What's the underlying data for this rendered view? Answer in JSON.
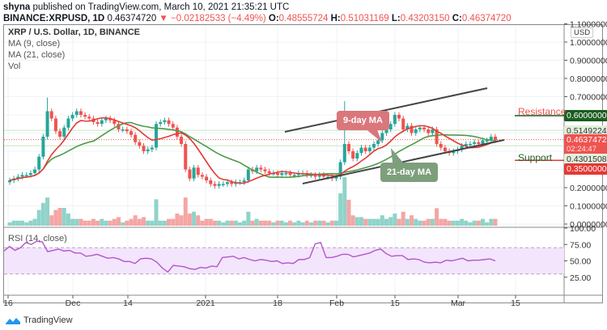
{
  "header": {
    "publisher": "shyna",
    "published_text": "published on TradingView.com, March 10, 2021 21:35:21 UTC",
    "symbol": "BINANCE:XRPUSD, 1D",
    "last": "0.46374720",
    "change_arrow": "▼",
    "change": "−0.02182533 (−4.49%)",
    "o_label": "O:",
    "o": "0.48555724",
    "h_label": "H:",
    "h": "0.51031169",
    "l_label": "L:",
    "l": "0.43203150",
    "c_label": "C:",
    "c": "0.46374720"
  },
  "legend": {
    "title": "XRP / U.S. Dollar, 1D, BINANCE",
    "ma9": "MA (9, close)",
    "ma21": "MA (21, close)",
    "vol": "Vol"
  },
  "price_axis": {
    "currency": "USD",
    "ticks": [
      "1.10000000",
      "1.00000000",
      "0.90000000",
      "0.80000000",
      "0.70000000",
      "0.60000000",
      "0.20000000",
      "0.10000000",
      "0.00000000"
    ],
    "tags": {
      "resistance": "0.60000000",
      "ma21_value": "0.51492241",
      "last_price": "0.46374720",
      "countdown": "02:24:47",
      "ma9_value": "0.43015080",
      "support": "0.35000000"
    }
  },
  "annotations": {
    "resistance": "Resistance",
    "support": "Support",
    "ma9_note": "9-day MA",
    "ma21_note": "21-day MA"
  },
  "rsi": {
    "label": "RSI (14, close)",
    "ticks": [
      "100.00",
      "75.00",
      "50.00",
      "25.00"
    ]
  },
  "x_axis": [
    "16",
    "Dec",
    "14",
    "2021",
    "18",
    "Feb",
    "15",
    "Mar",
    "15"
  ],
  "brand": "TradingView",
  "colors": {
    "up": "#26a69a",
    "down": "#ef5350",
    "ma9": "#e53935",
    "ma21": "#4c9a4a",
    "rsi": "#b455cf",
    "resistance_tag": "#1b5e20",
    "support_tag": "#e53935"
  },
  "chart_data": {
    "type": "candlestick",
    "title": "XRP / U.S. Dollar, 1D, BINANCE",
    "xlabel": "",
    "ylabel": "USD",
    "ylim": [
      0,
      1.1
    ],
    "x_tick_labels": [
      "16",
      "Dec",
      "14",
      "2021",
      "18",
      "Feb",
      "15",
      "Mar",
      "15"
    ],
    "closes": [
      0.24,
      0.25,
      0.26,
      0.27,
      0.27,
      0.28,
      0.3,
      0.37,
      0.48,
      0.62,
      0.58,
      0.51,
      0.48,
      0.53,
      0.58,
      0.6,
      0.62,
      0.6,
      0.59,
      0.58,
      0.56,
      0.55,
      0.57,
      0.58,
      0.57,
      0.55,
      0.52,
      0.52,
      0.51,
      0.49,
      0.45,
      0.43,
      0.4,
      0.41,
      0.42,
      0.55,
      0.56,
      0.57,
      0.55,
      0.53,
      0.48,
      0.44,
      0.3,
      0.25,
      0.31,
      0.27,
      0.26,
      0.24,
      0.22,
      0.21,
      0.22,
      0.22,
      0.23,
      0.22,
      0.23,
      0.23,
      0.24,
      0.3,
      0.29,
      0.31,
      0.3,
      0.29,
      0.28,
      0.28,
      0.27,
      0.28,
      0.28,
      0.27,
      0.27,
      0.28,
      0.28,
      0.27,
      0.27,
      0.26,
      0.27,
      0.26,
      0.26,
      0.25,
      0.26,
      0.34,
      0.44,
      0.4,
      0.36,
      0.39,
      0.42,
      0.4,
      0.42,
      0.44,
      0.46,
      0.5,
      0.52,
      0.55,
      0.6,
      0.58,
      0.52,
      0.54,
      0.5,
      0.52,
      0.53,
      0.52,
      0.5,
      0.52,
      0.44,
      0.42,
      0.4,
      0.39,
      0.4,
      0.41,
      0.43,
      0.44,
      0.44,
      0.45,
      0.44,
      0.46,
      0.46,
      0.48,
      0.46
    ],
    "series": [
      {
        "name": "MA (9, close)",
        "value_at_last": 0.4301508
      },
      {
        "name": "MA (21, close)",
        "value_at_last": 0.51492241
      }
    ],
    "horizontal_levels": [
      {
        "name": "Resistance",
        "value": 0.6
      },
      {
        "name": "Support",
        "value": 0.35
      }
    ],
    "rsi": {
      "name": "RSI (14, close)",
      "ylim": [
        0,
        100
      ],
      "band": [
        30,
        70
      ],
      "values": [
        65,
        72,
        66,
        70,
        78,
        75,
        80,
        79,
        64,
        66,
        68,
        65,
        66,
        62,
        62,
        57,
        58,
        60,
        57,
        54,
        55,
        53,
        49,
        49,
        46,
        53,
        54,
        53,
        48,
        39,
        33,
        43,
        42,
        41,
        38,
        37,
        40,
        39,
        42,
        41,
        55,
        56,
        57,
        53,
        55,
        52,
        50,
        52,
        51,
        49,
        50,
        46,
        47,
        46,
        52,
        52,
        55,
        76,
        78,
        55,
        55,
        57,
        60,
        60,
        56,
        58,
        60,
        62,
        66,
        68,
        61,
        57,
        58,
        58,
        52,
        53,
        52,
        48,
        47,
        48,
        47,
        51,
        50,
        52,
        54,
        50,
        51,
        51,
        52,
        53,
        50
      ]
    },
    "volume_note": "Volume bars colored by candle direction; spike near Feb 1"
  }
}
